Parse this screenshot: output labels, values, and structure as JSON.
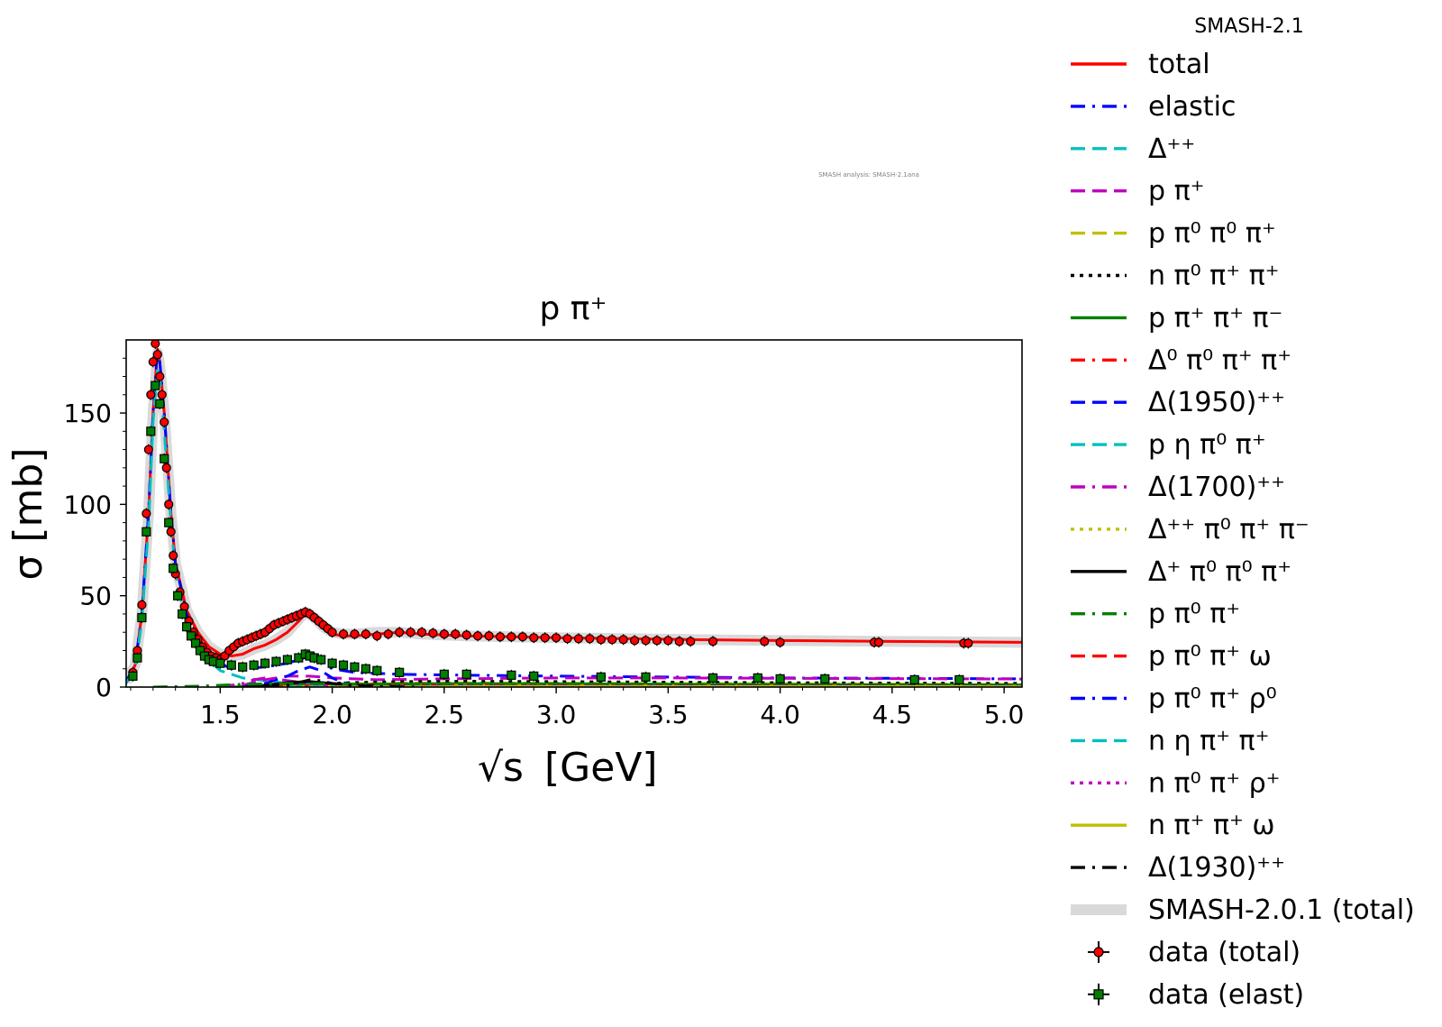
{
  "chart_data": {
    "type": "line",
    "title": "p π⁺",
    "watermark": "SMASH analysis: SMASH-2.1ana",
    "xlabel_text": "[GeV]",
    "xlabel_symbol": "√s",
    "ylabel": "σ [mb]",
    "xlim": [
      1.08,
      5.08
    ],
    "ylim": [
      0,
      190
    ],
    "xticks": [
      "1.5",
      "2.0",
      "2.5",
      "3.0",
      "3.5",
      "4.0",
      "4.5",
      "5.0"
    ],
    "xtick_values": [
      1.5,
      2.0,
      2.5,
      3.0,
      3.5,
      4.0,
      4.5,
      5.0
    ],
    "yticks": [
      "0",
      "50",
      "100",
      "150"
    ],
    "ytick_values": [
      0,
      50,
      100,
      150
    ],
    "legend_title": "SMASH-2.1",
    "legend_placement": "outside-right",
    "series": [
      {
        "name": "total",
        "color": "#ff0000",
        "dash": "solid",
        "x": [
          1.08,
          1.12,
          1.15,
          1.18,
          1.2,
          1.22,
          1.23,
          1.25,
          1.28,
          1.3,
          1.35,
          1.4,
          1.45,
          1.5,
          1.55,
          1.6,
          1.65,
          1.7,
          1.75,
          1.8,
          1.85,
          1.88,
          1.92,
          1.96,
          2.0,
          2.05,
          2.1,
          2.2,
          2.3,
          2.4,
          2.6,
          2.8,
          3.0,
          3.3,
          3.6,
          4.0,
          4.5,
          5.08
        ],
        "y": [
          3,
          12,
          40,
          95,
          150,
          185,
          178,
          150,
          95,
          68,
          42,
          30,
          22,
          18,
          17,
          18,
          21,
          23,
          26,
          30,
          36,
          40,
          38,
          33,
          29,
          28,
          28,
          29,
          30,
          29,
          28,
          27.5,
          27,
          26.5,
          26,
          25.5,
          25,
          24.5
        ]
      },
      {
        "name": "elastic",
        "color": "#0000ff",
        "dash": "dashdot",
        "x": [
          1.08,
          1.12,
          1.15,
          1.18,
          1.2,
          1.22,
          1.23,
          1.25,
          1.28,
          1.3,
          1.35,
          1.4,
          1.45,
          1.5,
          1.55,
          1.6,
          1.7,
          1.8,
          1.85,
          1.9,
          1.95,
          2.0,
          2.1,
          2.3,
          2.6,
          3.0,
          3.5,
          4.0,
          4.5,
          5.08
        ],
        "y": [
          3,
          12,
          40,
          95,
          150,
          185,
          178,
          150,
          95,
          68,
          40,
          26,
          18,
          13,
          10,
          10,
          11,
          13,
          15,
          17,
          14,
          10,
          8,
          7,
          6.5,
          6,
          5.5,
          5,
          4.8,
          4.5
        ]
      },
      {
        "name": "Δ⁺⁺",
        "color": "#00bfbf",
        "dash": "dashed",
        "x": [
          1.08,
          1.12,
          1.15,
          1.18,
          1.2,
          1.22,
          1.23,
          1.25,
          1.28,
          1.3,
          1.35,
          1.4,
          1.5,
          1.6,
          1.8,
          2.0,
          2.5,
          3.0,
          4.0,
          5.08
        ],
        "y": [
          2,
          10,
          36,
          88,
          145,
          175,
          170,
          140,
          90,
          62,
          34,
          20,
          9,
          5,
          2,
          1,
          0.5,
          0.2,
          0.1,
          0
        ]
      },
      {
        "name": "p π⁺",
        "color": "#bf00bf",
        "dash": "dashed",
        "x": [
          1.5,
          1.6,
          1.7,
          1.8,
          1.9,
          2.0,
          2.2,
          2.5,
          3.0,
          3.5,
          4.0,
          4.5,
          5.08
        ],
        "y": [
          0,
          1,
          4,
          6,
          6,
          5,
          4,
          4.5,
          5,
          5,
          4.8,
          4.6,
          4.4
        ]
      },
      {
        "name": "p π⁰ π⁰ π⁺",
        "color": "#bfbf00",
        "dash": "dashed",
        "x": [
          1.5,
          1.7,
          1.9,
          2.1,
          2.3,
          2.6,
          3.0,
          3.5,
          4.0,
          5.08
        ],
        "y": [
          0,
          0.5,
          1,
          1.8,
          2.2,
          2.3,
          2.2,
          2,
          1.8,
          1.5
        ]
      },
      {
        "name": "n π⁰ π⁺ π⁺",
        "color": "#000000",
        "dash": "dotted",
        "x": [
          1.5,
          1.7,
          1.9,
          2.1,
          2.3,
          2.6,
          3.0,
          3.5,
          4.0,
          5.08
        ],
        "y": [
          0,
          0.6,
          1.5,
          2.5,
          3,
          3.2,
          3,
          2.7,
          2.4,
          2
        ]
      },
      {
        "name": "p π⁺ π⁺ π⁻",
        "color": "#008000",
        "dash": "solid",
        "x": [
          1.5,
          1.7,
          1.9,
          2.1,
          2.3,
          2.6,
          3.0,
          3.5,
          4.0,
          5.08
        ],
        "y": [
          0,
          0.4,
          1,
          1.5,
          1.8,
          1.9,
          1.8,
          1.6,
          1.4,
          1.2
        ]
      },
      {
        "name": "Δ⁰ π⁰ π⁺ π⁺",
        "color": "#ff0000",
        "dash": "dashdot",
        "x": [
          1.6,
          1.8,
          2.0,
          2.2,
          2.5,
          3.0,
          4.0,
          5.08
        ],
        "y": [
          0,
          0.5,
          1,
          1.2,
          1.1,
          0.9,
          0.6,
          0.4
        ]
      },
      {
        "name": "Δ(1950)⁺⁺",
        "color": "#0000ff",
        "dash": "dashed",
        "x": [
          1.6,
          1.7,
          1.8,
          1.85,
          1.9,
          1.95,
          2.0,
          2.05,
          2.1,
          2.2,
          2.4,
          3.0
        ],
        "y": [
          0,
          2,
          6,
          9,
          11,
          9,
          5,
          2.5,
          1,
          0.4,
          0.1,
          0
        ]
      },
      {
        "name": "p η π⁰ π⁺",
        "color": "#00bfbf",
        "dash": "dashed",
        "x": [
          1.7,
          2.0,
          2.3,
          2.6,
          3.0,
          4.0,
          5.08
        ],
        "y": [
          0,
          0.2,
          0.4,
          0.4,
          0.35,
          0.25,
          0.2
        ]
      },
      {
        "name": "Δ(1700)⁺⁺",
        "color": "#bf00bf",
        "dash": "dashdot",
        "x": [
          1.5,
          1.6,
          1.65,
          1.7,
          1.75,
          1.8,
          1.9,
          2.0,
          2.2,
          2.5
        ],
        "y": [
          0,
          2,
          4,
          5,
          4.5,
          3.5,
          2,
          1,
          0.3,
          0
        ]
      },
      {
        "name": "Δ⁺⁺ π⁰ π⁺ π⁻",
        "color": "#bfbf00",
        "dash": "dotted",
        "x": [
          1.7,
          2.0,
          2.3,
          2.6,
          3.0,
          4.0,
          5.08
        ],
        "y": [
          0,
          0.4,
          0.8,
          0.9,
          0.8,
          0.6,
          0.5
        ]
      },
      {
        "name": "Δ⁺ π⁰ π⁰ π⁺",
        "color": "#000000",
        "dash": "solid",
        "x": [
          1.6,
          1.7,
          1.8,
          1.9,
          2.0,
          2.1,
          2.3,
          2.6,
          3.0
        ],
        "y": [
          0,
          1,
          2.5,
          3,
          2,
          1,
          0.5,
          0.2,
          0
        ]
      },
      {
        "name": "p π⁰ π⁺",
        "color": "#008000",
        "dash": "dashdot",
        "x": [
          1.2,
          1.4,
          1.6,
          1.8,
          2.0,
          2.3,
          2.6,
          3.0,
          4.0,
          5.08
        ],
        "y": [
          0,
          0.5,
          1.5,
          2,
          1.8,
          1.3,
          1,
          0.8,
          0.5,
          0.3
        ]
      },
      {
        "name": "p π⁰ π⁺ ω",
        "color": "#ff0000",
        "dash": "dashed",
        "x": [
          2.0,
          2.3,
          2.6,
          3.0,
          4.0,
          5.08
        ],
        "y": [
          0,
          0.2,
          0.4,
          0.4,
          0.3,
          0.2
        ]
      },
      {
        "name": "p π⁰ π⁺ ρ⁰",
        "color": "#0000ff",
        "dash": "dashdot",
        "x": [
          2.0,
          2.3,
          2.6,
          3.0,
          4.0,
          5.08
        ],
        "y": [
          0,
          0.3,
          0.5,
          0.6,
          0.5,
          0.4
        ]
      },
      {
        "name": "n η π⁺ π⁺",
        "color": "#00bfbf",
        "dash": "dashed",
        "x": [
          1.8,
          2.1,
          2.5,
          3.0,
          4.0,
          5.08
        ],
        "y": [
          0,
          0.1,
          0.2,
          0.2,
          0.15,
          0.1
        ]
      },
      {
        "name": "n π⁰ π⁺ ρ⁺",
        "color": "#bf00bf",
        "dash": "dotted",
        "x": [
          2.0,
          2.3,
          2.6,
          3.0,
          4.0,
          5.08
        ],
        "y": [
          0,
          0.2,
          0.4,
          0.5,
          0.4,
          0.3
        ]
      },
      {
        "name": "n π⁺ π⁺ ω",
        "color": "#bfbf00",
        "dash": "solid",
        "x": [
          2.0,
          2.4,
          2.8,
          3.2,
          4.0,
          5.08
        ],
        "y": [
          0,
          0.15,
          0.3,
          0.3,
          0.25,
          0.2
        ]
      },
      {
        "name": "Δ(1930)⁺⁺",
        "color": "#000000",
        "dash": "dashdot",
        "x": [
          1.7,
          1.8,
          1.85,
          1.9,
          1.95,
          2.0,
          2.1,
          2.2,
          2.4
        ],
        "y": [
          0,
          1,
          2.5,
          4,
          3.5,
          2,
          0.8,
          0.3,
          0
        ]
      },
      {
        "name": "SMASH-2.0.1 (total)",
        "color": "#d9d9d9",
        "dash": "band",
        "x": [
          1.08,
          1.12,
          1.15,
          1.18,
          1.2,
          1.22,
          1.23,
          1.25,
          1.28,
          1.3,
          1.35,
          1.4,
          1.45,
          1.5,
          1.55,
          1.6,
          1.65,
          1.7,
          1.75,
          1.8,
          1.85,
          1.88,
          1.92,
          1.96,
          2.0,
          2.05,
          2.1,
          2.2,
          2.3,
          2.4,
          2.6,
          2.8,
          3.0,
          3.3,
          3.6,
          4.0,
          4.5,
          5.08
        ],
        "y": [
          3,
          12,
          40,
          95,
          150,
          183,
          176,
          150,
          95,
          68,
          42,
          30,
          22,
          18,
          17,
          18,
          21,
          23,
          26,
          30,
          37,
          41,
          38,
          33,
          30,
          29,
          29,
          30,
          30,
          29,
          28,
          27.5,
          27,
          26.5,
          26,
          25.5,
          25,
          24.5
        ]
      }
    ],
    "data_series": [
      {
        "name": "data (total)",
        "color": "#ff0000",
        "marker": "circle",
        "x": [
          1.11,
          1.13,
          1.15,
          1.17,
          1.18,
          1.19,
          1.2,
          1.21,
          1.22,
          1.23,
          1.24,
          1.25,
          1.26,
          1.27,
          1.28,
          1.29,
          1.3,
          1.32,
          1.34,
          1.36,
          1.38,
          1.4,
          1.42,
          1.44,
          1.46,
          1.48,
          1.5,
          1.52,
          1.54,
          1.56,
          1.58,
          1.6,
          1.62,
          1.64,
          1.66,
          1.68,
          1.7,
          1.72,
          1.74,
          1.76,
          1.78,
          1.8,
          1.82,
          1.84,
          1.86,
          1.88,
          1.9,
          1.92,
          1.94,
          1.96,
          1.98,
          2.0,
          2.05,
          2.1,
          2.15,
          2.2,
          2.25,
          2.3,
          2.35,
          2.4,
          2.45,
          2.5,
          2.55,
          2.6,
          2.65,
          2.7,
          2.75,
          2.8,
          2.85,
          2.9,
          2.95,
          3.0,
          3.05,
          3.1,
          3.15,
          3.2,
          3.25,
          3.3,
          3.35,
          3.4,
          3.45,
          3.5,
          3.55,
          3.6,
          3.7,
          3.93,
          4.0,
          4.42,
          4.44,
          4.82,
          4.84
        ],
        "y": [
          8,
          20,
          45,
          95,
          130,
          160,
          178,
          188,
          182,
          170,
          160,
          145,
          120,
          100,
          85,
          72,
          62,
          52,
          44,
          36,
          30,
          26,
          22,
          19,
          17,
          16,
          15,
          17,
          20,
          22,
          24,
          25,
          26,
          27,
          28,
          29,
          30,
          32,
          34,
          35,
          36,
          37,
          38,
          39,
          40,
          41,
          40,
          38,
          36,
          34,
          32,
          30,
          29,
          29,
          29,
          28,
          29,
          30,
          30,
          30,
          29.5,
          29,
          29,
          28.5,
          28,
          28,
          27.5,
          27.5,
          27.5,
          27,
          27,
          27,
          26.5,
          26.5,
          26.5,
          26,
          26,
          26,
          25.5,
          25.5,
          25.5,
          25.5,
          25,
          25,
          25,
          25,
          24.5,
          24.5,
          24.5,
          24,
          24
        ]
      },
      {
        "name": "data (elast)",
        "color": "#008000",
        "marker": "square",
        "x": [
          1.11,
          1.13,
          1.15,
          1.17,
          1.19,
          1.21,
          1.23,
          1.25,
          1.27,
          1.29,
          1.31,
          1.33,
          1.35,
          1.37,
          1.39,
          1.41,
          1.43,
          1.45,
          1.47,
          1.5,
          1.55,
          1.6,
          1.65,
          1.7,
          1.75,
          1.8,
          1.85,
          1.88,
          1.9,
          1.92,
          1.95,
          2.0,
          2.05,
          2.1,
          2.15,
          2.2,
          2.3,
          2.5,
          2.6,
          2.8,
          2.9,
          3.2,
          3.4,
          3.7,
          3.9,
          4.0,
          4.2,
          4.6,
          4.8
        ],
        "y": [
          6,
          16,
          38,
          85,
          140,
          165,
          155,
          125,
          90,
          65,
          50,
          40,
          33,
          28,
          24,
          20,
          17,
          15,
          14,
          13,
          12,
          11,
          12,
          13,
          14,
          15,
          16,
          18,
          17,
          16,
          15,
          13,
          12,
          11,
          10,
          9,
          8,
          7,
          7,
          6.5,
          6,
          5.5,
          5.5,
          5,
          5,
          4.5,
          4.5,
          4,
          4
        ]
      }
    ]
  }
}
